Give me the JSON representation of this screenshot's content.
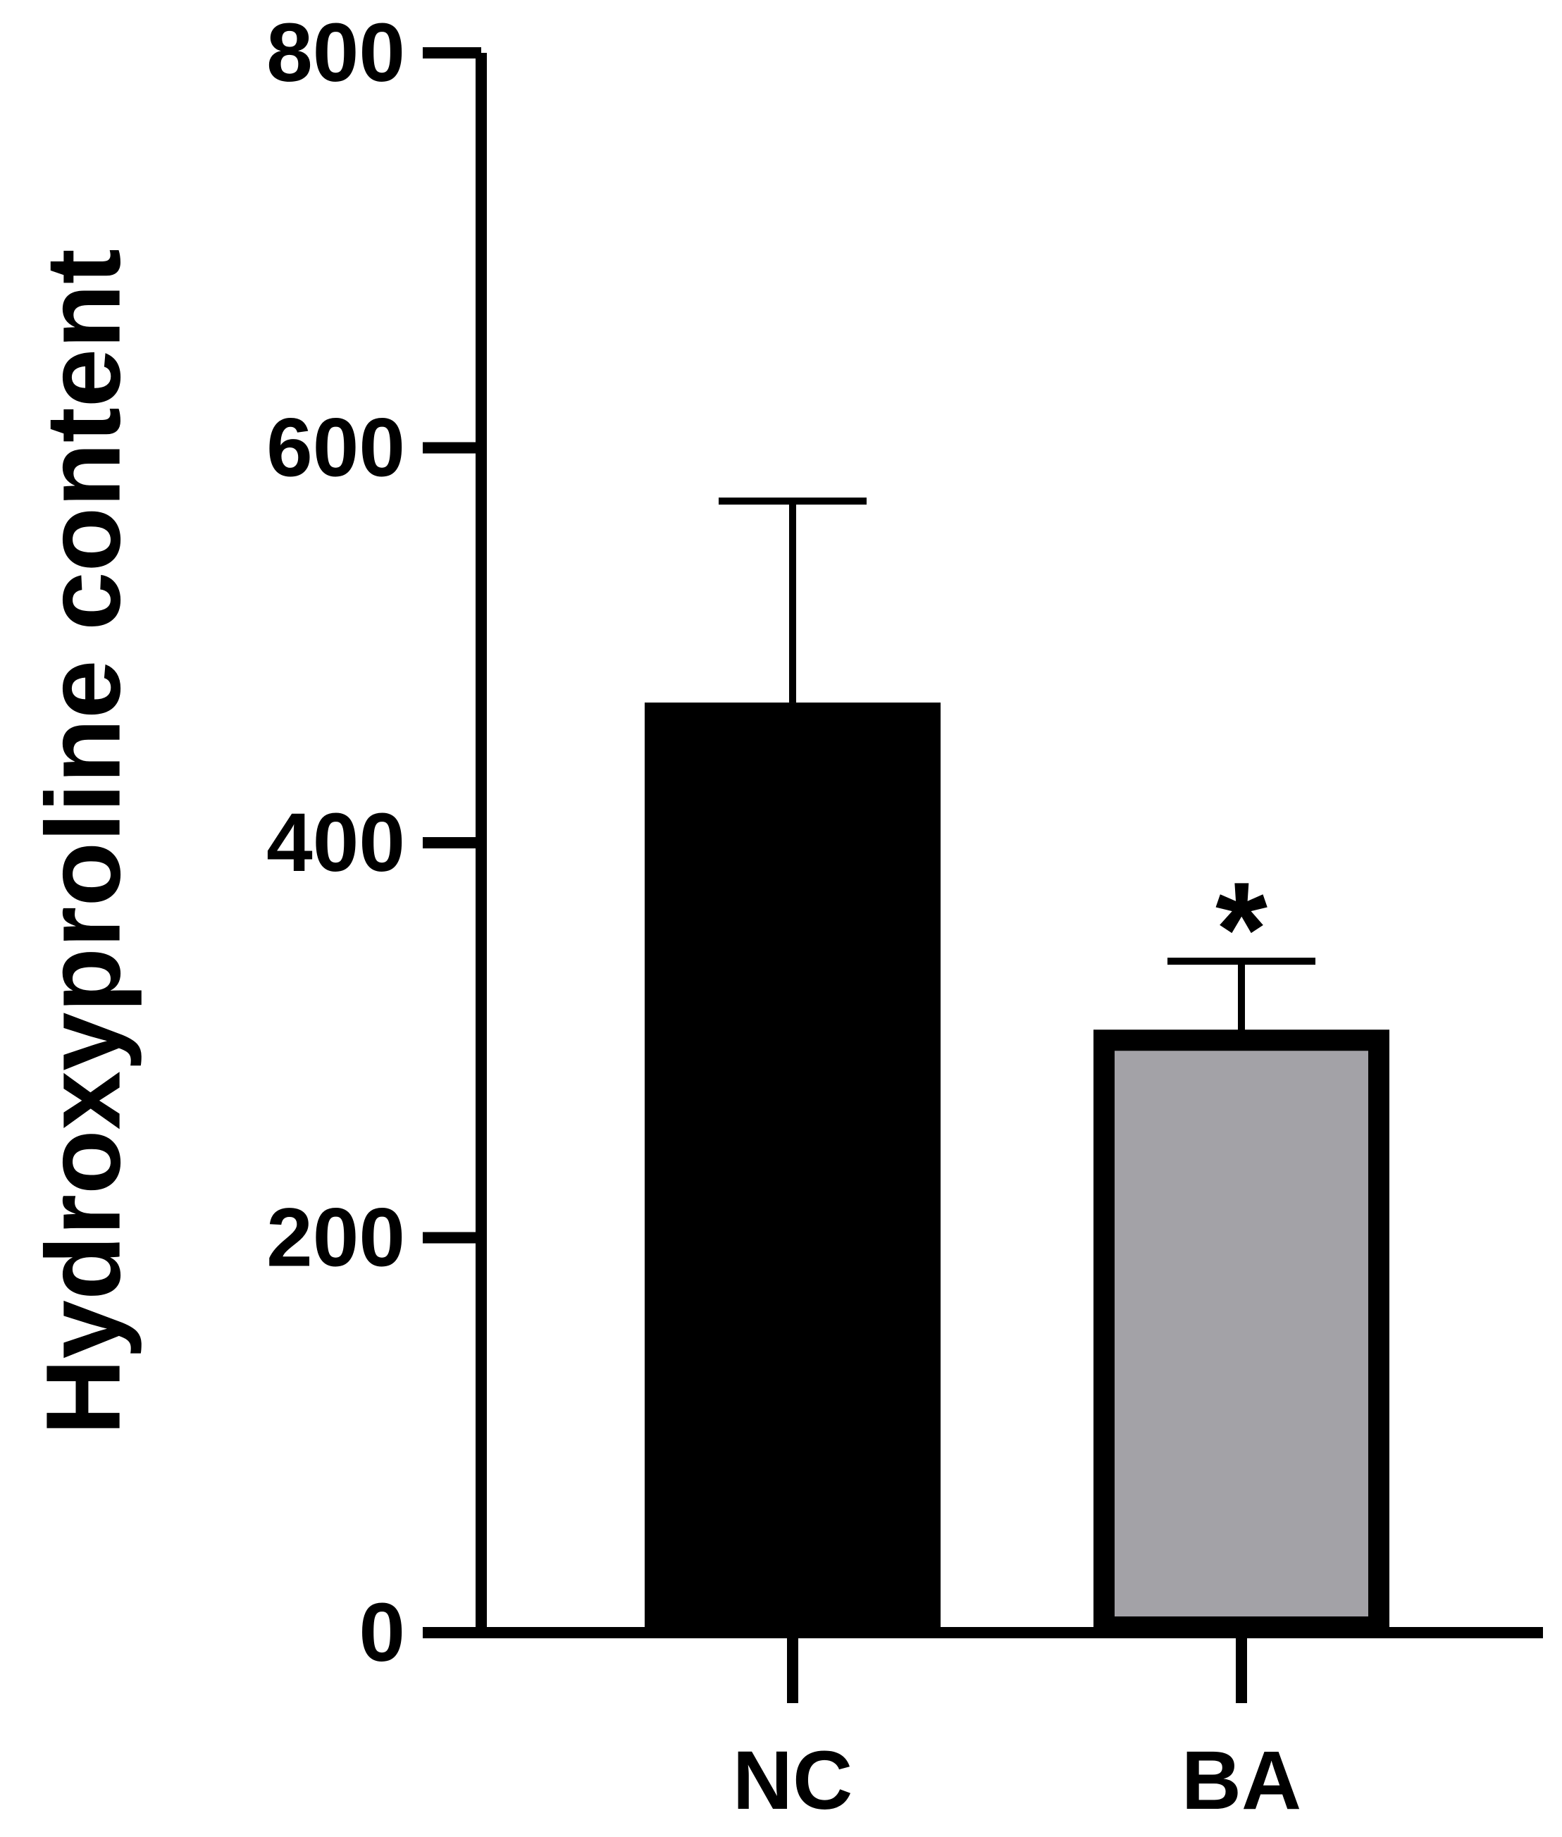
{
  "chart_data": {
    "type": "bar",
    "ylabel": "Hydroxyproline content",
    "categories": [
      "NC",
      "BA"
    ],
    "values": [
      471,
      300
    ],
    "errors": [
      102,
      40
    ],
    "colors": [
      "#000000",
      "#a3a2a7"
    ],
    "value_annotations": [
      null,
      "*"
    ],
    "ylim": [
      0,
      800
    ],
    "yticks": [
      0,
      200,
      400,
      600,
      800
    ]
  }
}
